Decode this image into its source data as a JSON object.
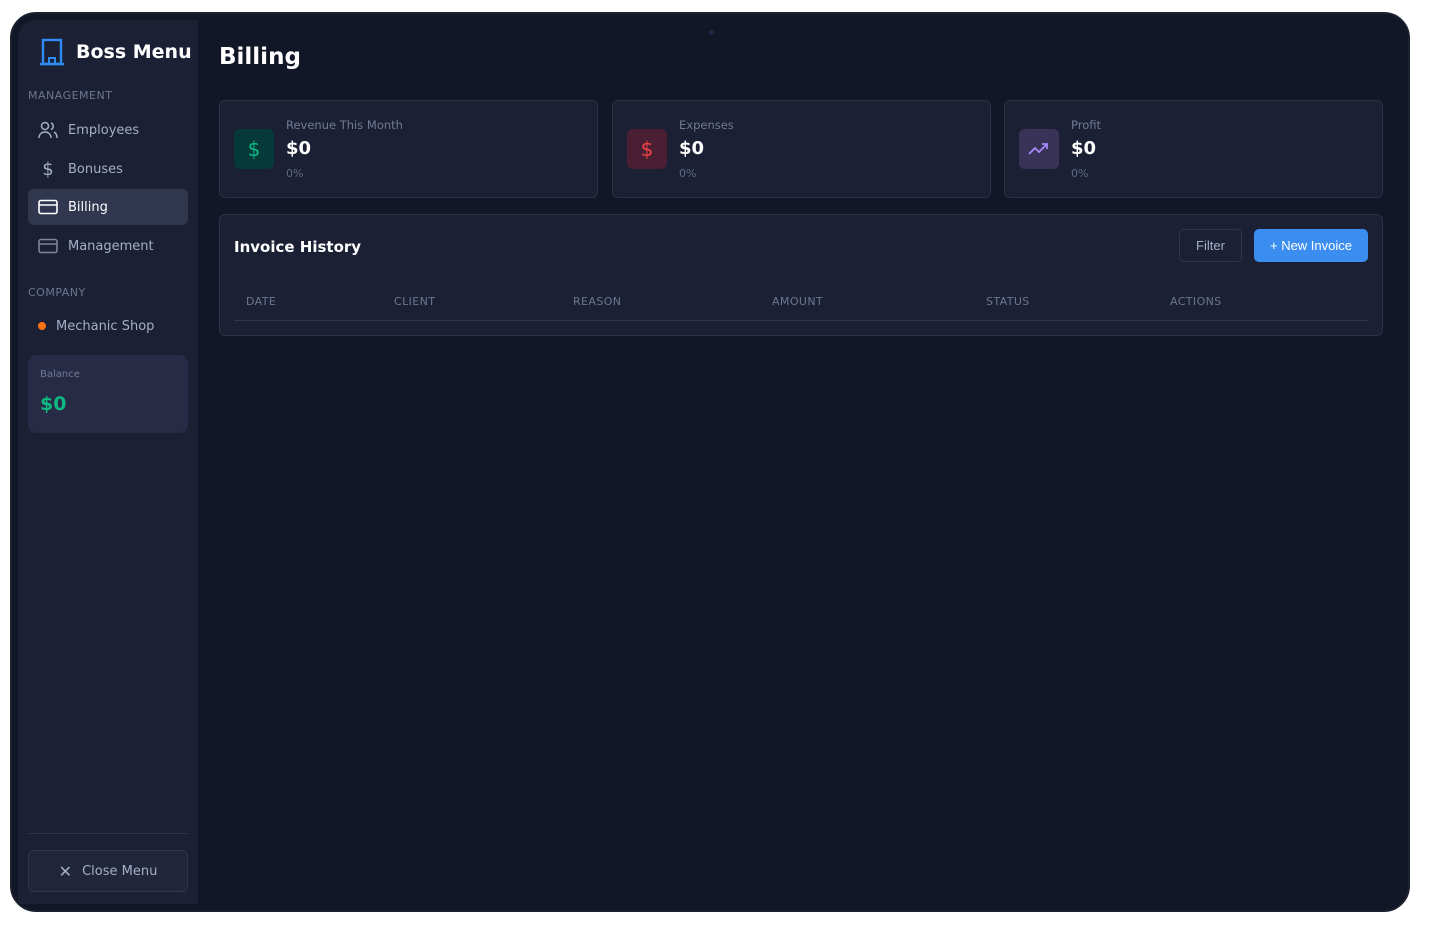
{
  "app": {
    "title": "Boss Menu"
  },
  "sidebar": {
    "management_label": "MANAGEMENT",
    "items": [
      {
        "label": "Employees",
        "icon": "users-icon"
      },
      {
        "label": "Bonuses",
        "icon": "dollar-icon"
      },
      {
        "label": "Billing",
        "icon": "credit-card-icon",
        "active": true
      },
      {
        "label": "Management",
        "icon": "credit-card-icon"
      }
    ],
    "company_label": "COMPANY",
    "company": {
      "name": "Mechanic Shop",
      "status_color": "#f97316"
    },
    "balance": {
      "label": "Balance",
      "value": "$0"
    },
    "close_label": "Close Menu"
  },
  "page": {
    "title": "Billing"
  },
  "stats": [
    {
      "label": "Revenue This Month",
      "value": "$0",
      "change": "0%",
      "icon": "dollar-icon",
      "color": "#10b981"
    },
    {
      "label": "Expenses",
      "value": "$0",
      "change": "0%",
      "icon": "dollar-icon",
      "color": "#ef4444"
    },
    {
      "label": "Profit",
      "value": "$0",
      "change": "0%",
      "icon": "trending-up-icon",
      "color": "#a78bfa"
    }
  ],
  "invoices": {
    "title": "Invoice History",
    "filter_label": "Filter",
    "new_label": "+ New Invoice",
    "columns": [
      "DATE",
      "CLIENT",
      "REASON",
      "AMOUNT",
      "STATUS",
      "ACTIONS"
    ],
    "rows": []
  }
}
